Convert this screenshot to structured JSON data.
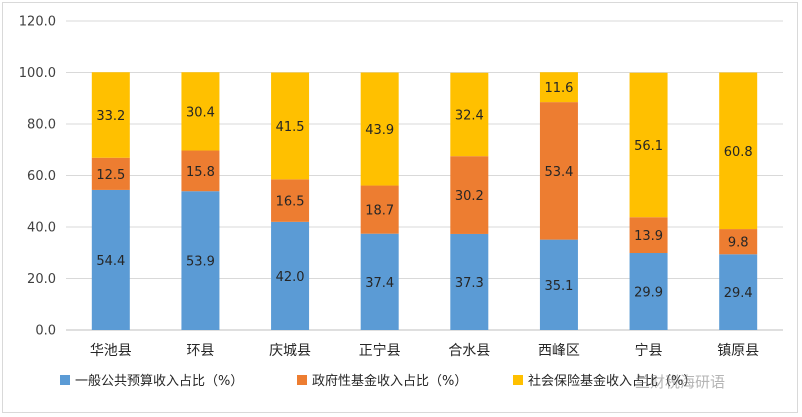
{
  "chart_data": {
    "type": "bar",
    "stacked": true,
    "categories": [
      "华池县",
      "环县",
      "庆城县",
      "正宁县",
      "合水县",
      "西峰区",
      "宁县",
      "镇原县"
    ],
    "series": [
      {
        "name": "一般公共预算收入占比（%）",
        "color": "#5b9bd5",
        "values": [
          54.4,
          53.9,
          42.0,
          37.4,
          37.3,
          35.1,
          29.9,
          29.4
        ]
      },
      {
        "name": "政府性基金收入占比（%）",
        "color": "#ed7d31",
        "values": [
          12.5,
          15.8,
          16.5,
          18.7,
          30.2,
          53.4,
          13.9,
          9.8
        ]
      },
      {
        "name": "社会保险基金收入占比（%）",
        "color": "#ffc000",
        "values": [
          33.2,
          30.4,
          41.5,
          43.9,
          32.4,
          11.6,
          56.1,
          60.8
        ]
      }
    ],
    "ylim": [
      0,
      120
    ],
    "yticks": [
      "0.0",
      "20.0",
      "40.0",
      "60.0",
      "80.0",
      "100.0",
      "120.0"
    ],
    "grid": true,
    "legend_position": "bottom"
  },
  "watermark": "兰财税海研语"
}
